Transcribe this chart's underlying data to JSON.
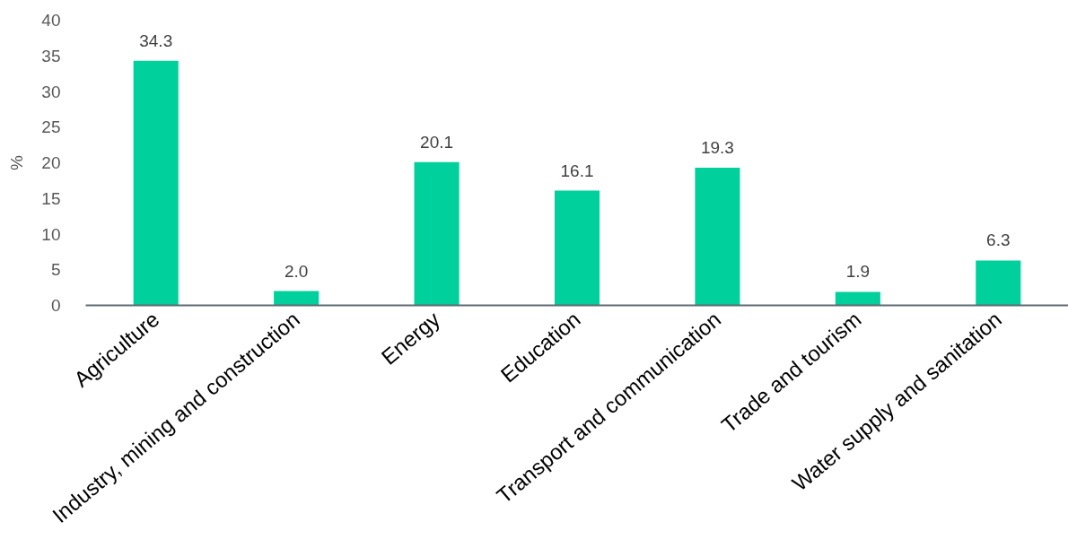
{
  "chart_data": {
    "type": "bar",
    "ylabel": "%",
    "categories": [
      "Agriculture",
      "Industry, mining and construction",
      "Energy",
      "Education",
      "Transport and communication",
      "Trade and tourism",
      "Water supply and sanitation"
    ],
    "values": [
      34.3,
      2.0,
      20.1,
      16.1,
      19.3,
      1.9,
      6.3
    ],
    "value_labels": [
      "34.3",
      "2.0",
      "20.1",
      "16.1",
      "19.3",
      "1.9",
      "6.3"
    ],
    "color": "#00d09c",
    "ylim": [
      0,
      40
    ],
    "yticks": [
      0,
      5,
      10,
      15,
      20,
      25,
      30,
      35,
      40
    ]
  }
}
